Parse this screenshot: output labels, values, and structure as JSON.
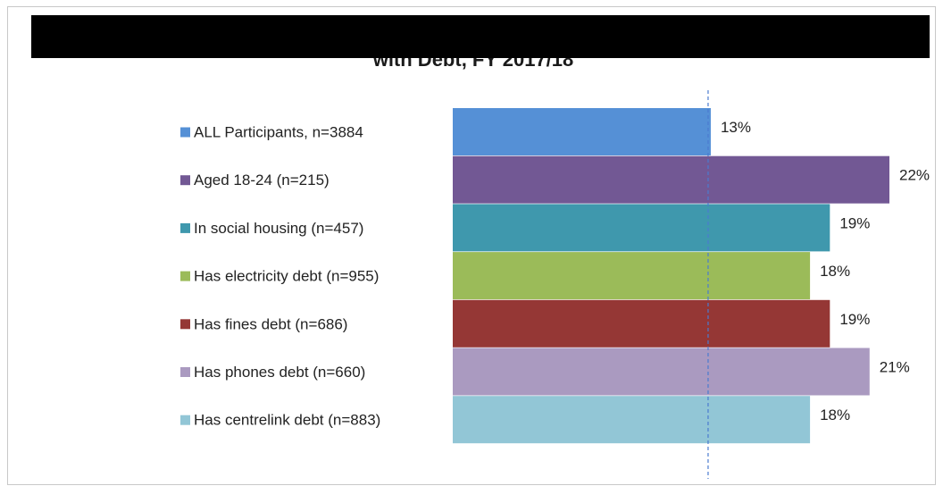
{
  "chart_data": {
    "type": "bar",
    "orientation": "horizontal",
    "title": "with Debt, FY 2017/18",
    "categories": [
      "ALL Participants, n=3884",
      "Aged 18-24 (n=215)",
      "In social housing (n=457)",
      "Has electricity debt (n=955)",
      "Has fines debt (n=686)",
      "Has phones debt (n=660)",
      "Has centrelink debt (n=883)"
    ],
    "values": [
      13,
      22,
      19,
      18,
      19,
      21,
      18
    ],
    "value_labels": [
      "13%",
      "22%",
      "19%",
      "18%",
      "19%",
      "21%",
      "18%"
    ],
    "colors": [
      "#5590d6",
      "#725894",
      "#3f98ad",
      "#9bbb59",
      "#953735",
      "#aa9ac0",
      "#92c6d6"
    ],
    "reference_line": 13,
    "xlim": [
      0,
      22
    ],
    "legend_position": "left",
    "grid": false
  }
}
